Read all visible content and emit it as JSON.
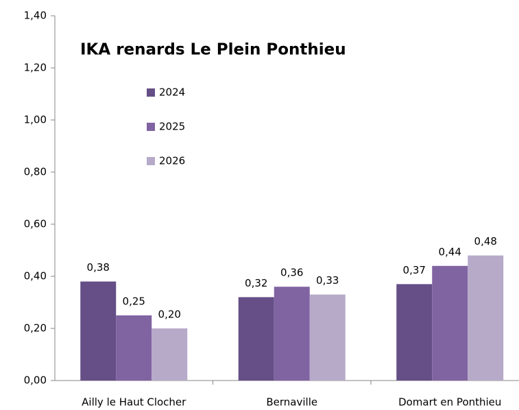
{
  "chart_data": {
    "type": "bar",
    "title": "IKA renards Le Plein Ponthieu",
    "categories": [
      "Ailly le Haut Clocher",
      "Bernaville",
      "Domart en Ponthieu"
    ],
    "series": [
      {
        "name": "2024",
        "color": "#654f86",
        "values": [
          0.38,
          0.32,
          0.37
        ],
        "value_labels": [
          "0,38",
          "0,32",
          "0,37"
        ]
      },
      {
        "name": "2025",
        "color": "#8064a2",
        "values": [
          0.25,
          0.36,
          0.44
        ],
        "value_labels": [
          "0,25",
          "0,36",
          "0,44"
        ]
      },
      {
        "name": "2026",
        "color": "#b7aac9",
        "values": [
          0.2,
          0.33,
          0.48
        ],
        "value_labels": [
          "0,20",
          "0,33",
          "0,48"
        ]
      }
    ],
    "ylim": [
      0,
      1.4
    ],
    "yticks": [
      {
        "value": 0,
        "label": "0,00"
      },
      {
        "value": 0.2,
        "label": "0,20"
      },
      {
        "value": 0.4,
        "label": "0,40"
      },
      {
        "value": 0.6,
        "label": "0,60"
      },
      {
        "value": 0.8,
        "label": "0,80"
      },
      {
        "value": 1.0,
        "label": "1,00"
      },
      {
        "value": 1.2,
        "label": "1,20"
      },
      {
        "value": 1.4,
        "label": "1,40"
      }
    ],
    "legend": "upper left"
  }
}
